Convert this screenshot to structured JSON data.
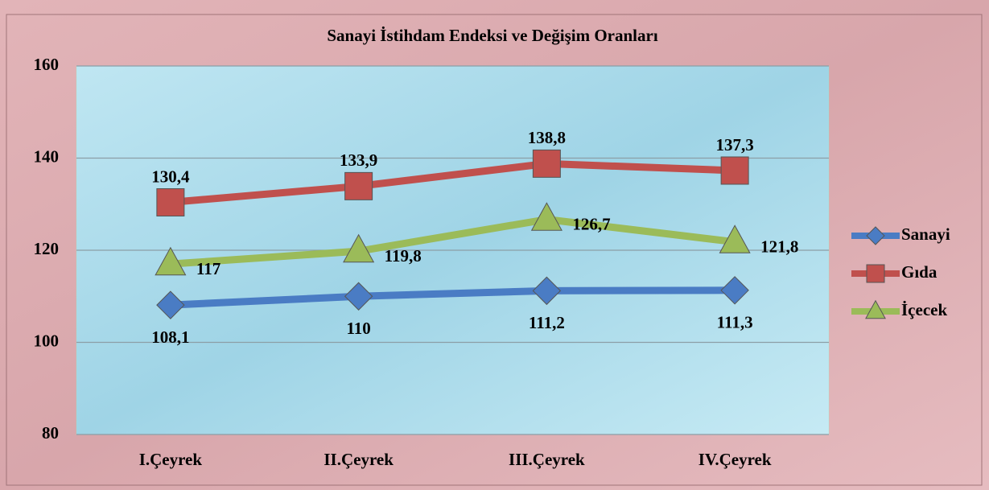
{
  "chart_data": {
    "type": "line",
    "title": "Sanayi İstihdam Endeksi ve Değişim Oranları",
    "categories": [
      "I.Çeyrek",
      "II.Çeyrek",
      "III.Çeyrek",
      "IV.Çeyrek"
    ],
    "series": [
      {
        "name": "Sanayi",
        "color": "#4a7cc4",
        "marker": "diamond",
        "values": [
          108.1,
          110,
          111.2,
          111.3
        ],
        "value_labels": [
          "108,1",
          "110",
          "111,2",
          "111,3"
        ]
      },
      {
        "name": "Gıda",
        "color": "#c0504d",
        "marker": "square",
        "values": [
          130.4,
          133.9,
          138.8,
          137.3
        ],
        "value_labels": [
          "130,4",
          "133,9",
          "138,8",
          "137,3"
        ]
      },
      {
        "name": "İçecek",
        "color": "#9bbb59",
        "marker": "triangle",
        "values": [
          117,
          119.8,
          126.7,
          121.8
        ],
        "value_labels": [
          "117",
          "119,8",
          "126,7",
          "121,8"
        ]
      }
    ],
    "ylim": [
      80,
      160
    ],
    "yticks": [
      80,
      100,
      120,
      140,
      160
    ],
    "grid": true,
    "legend": "right"
  }
}
